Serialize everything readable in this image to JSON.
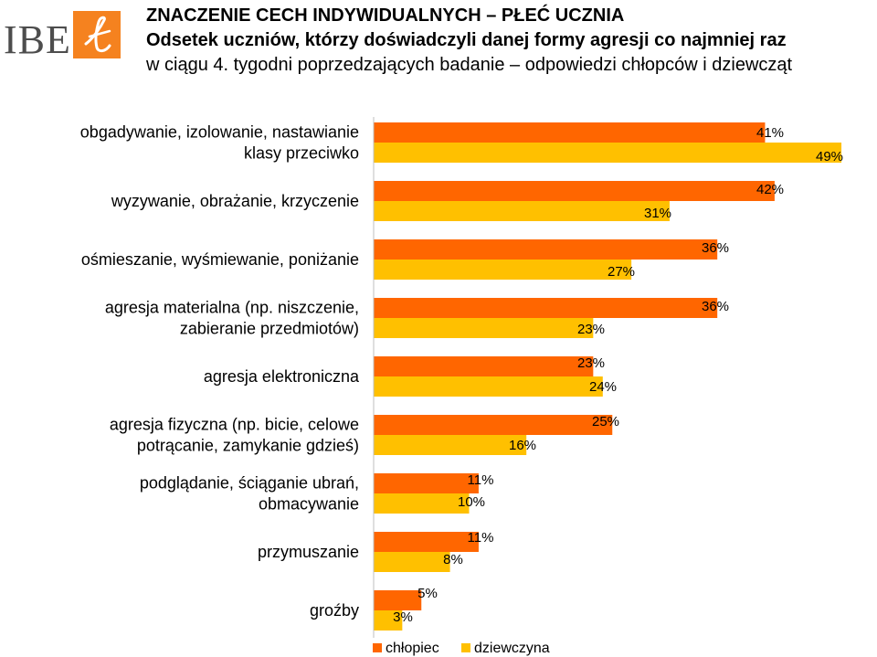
{
  "logo": {
    "text": "IBE",
    "accent_color": "#f5821f"
  },
  "header": {
    "title": "ZNACZENIE CECH INDYWIDUALNYCH – PŁEĆ UCZNIA",
    "subtitle_bold": "Odsetek uczniów, którzy doświadczyli danej formy agresji co najmniej raz",
    "subtitle_rest": "w ciągu 4. tygodni poprzedzających badanie – odpowiedzi chłopców i dziewcząt"
  },
  "chart_data": {
    "type": "bar",
    "orientation": "horizontal",
    "categories": [
      [
        "obgadywanie, izolowanie, nastawianie",
        "klasy przeciwko"
      ],
      [
        "wyzywanie, obrażanie, krzyczenie"
      ],
      [
        "ośmieszanie, wyśmiewanie, poniżanie"
      ],
      [
        "agresja materialna (np. niszczenie,",
        "zabieranie przedmiotów)"
      ],
      [
        "agresja elektroniczna"
      ],
      [
        "agresja fizyczna (np. bicie, celowe",
        "potrącanie, zamykanie gdzieś)"
      ],
      [
        "podglądanie, ściąganie ubrań,",
        "obmacywanie"
      ],
      [
        "przymuszanie"
      ],
      [
        "groźby"
      ]
    ],
    "series": [
      {
        "name": "chłopiec",
        "color": "#ff6600",
        "values": [
          41,
          42,
          36,
          36,
          23,
          25,
          11,
          11,
          5
        ],
        "labels": [
          "41%",
          "42%",
          "36%",
          "36%",
          "23%",
          "25%",
          "11%",
          "11%",
          "5%"
        ]
      },
      {
        "name": "dziewczyna",
        "color": "#ffc000",
        "values": [
          49,
          31,
          27,
          23,
          24,
          16,
          10,
          8,
          3
        ],
        "labels": [
          "49%",
          "31%",
          "27%",
          "23%",
          "24%",
          "16%",
          "10%",
          "8%",
          "3%"
        ]
      }
    ],
    "xlim": [
      0,
      50
    ],
    "grid": false,
    "legend_position": "bottom"
  }
}
